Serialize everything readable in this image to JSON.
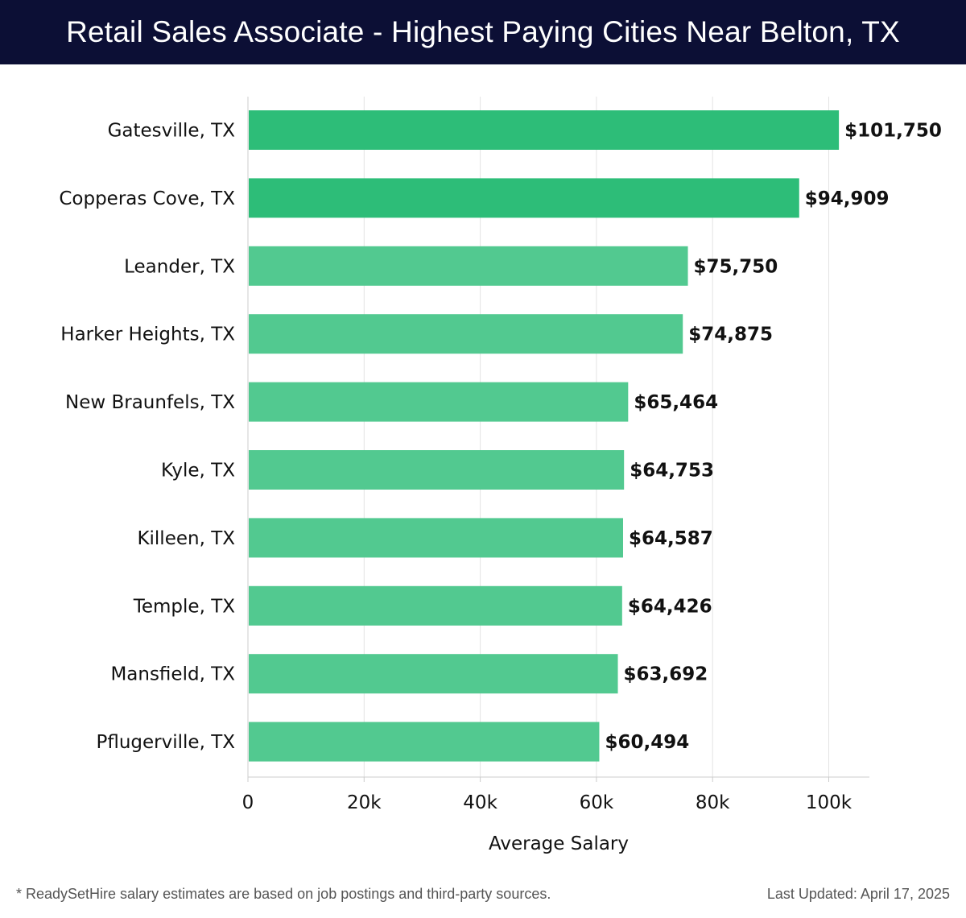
{
  "header": {
    "title": "Retail Sales Associate - Highest Paying Cities Near Belton, TX"
  },
  "footer": {
    "note": "* ReadySetHire salary estimates are based on job postings and third-party sources.",
    "last_updated": "Last Updated: April 17, 2025"
  },
  "chart_data": {
    "type": "bar",
    "orientation": "horizontal",
    "title": "Retail Sales Associate - Highest Paying Cities Near Belton, TX",
    "xlabel": "Average Salary",
    "ylabel": "",
    "categories": [
      "Gatesville, TX",
      "Copperas Cove, TX",
      "Leander, TX",
      "Harker Heights, TX",
      "New Braunfels, TX",
      "Kyle, TX",
      "Killeen, TX",
      "Temple, TX",
      "Mansfield, TX",
      "Pflugerville, TX"
    ],
    "values": [
      101750,
      94909,
      75750,
      74875,
      65464,
      64753,
      64587,
      64426,
      63692,
      60494
    ],
    "value_labels": [
      "$101,750",
      "$94,909",
      "$75,750",
      "$74,875",
      "$65,464",
      "$64,753",
      "$64,587",
      "$64,426",
      "$63,692",
      "$60,494"
    ],
    "xlim": [
      0,
      107000
    ],
    "xticks": [
      0,
      20000,
      40000,
      60000,
      80000,
      100000
    ],
    "xtick_labels": [
      "0",
      "20k",
      "40k",
      "60k",
      "80k",
      "100k"
    ],
    "grid": "vertical",
    "colors": {
      "top": "#2dbd78",
      "rest": "#52c990",
      "grid": "#e3e3e3",
      "axis": "#cccccc",
      "label": "#111111"
    }
  }
}
